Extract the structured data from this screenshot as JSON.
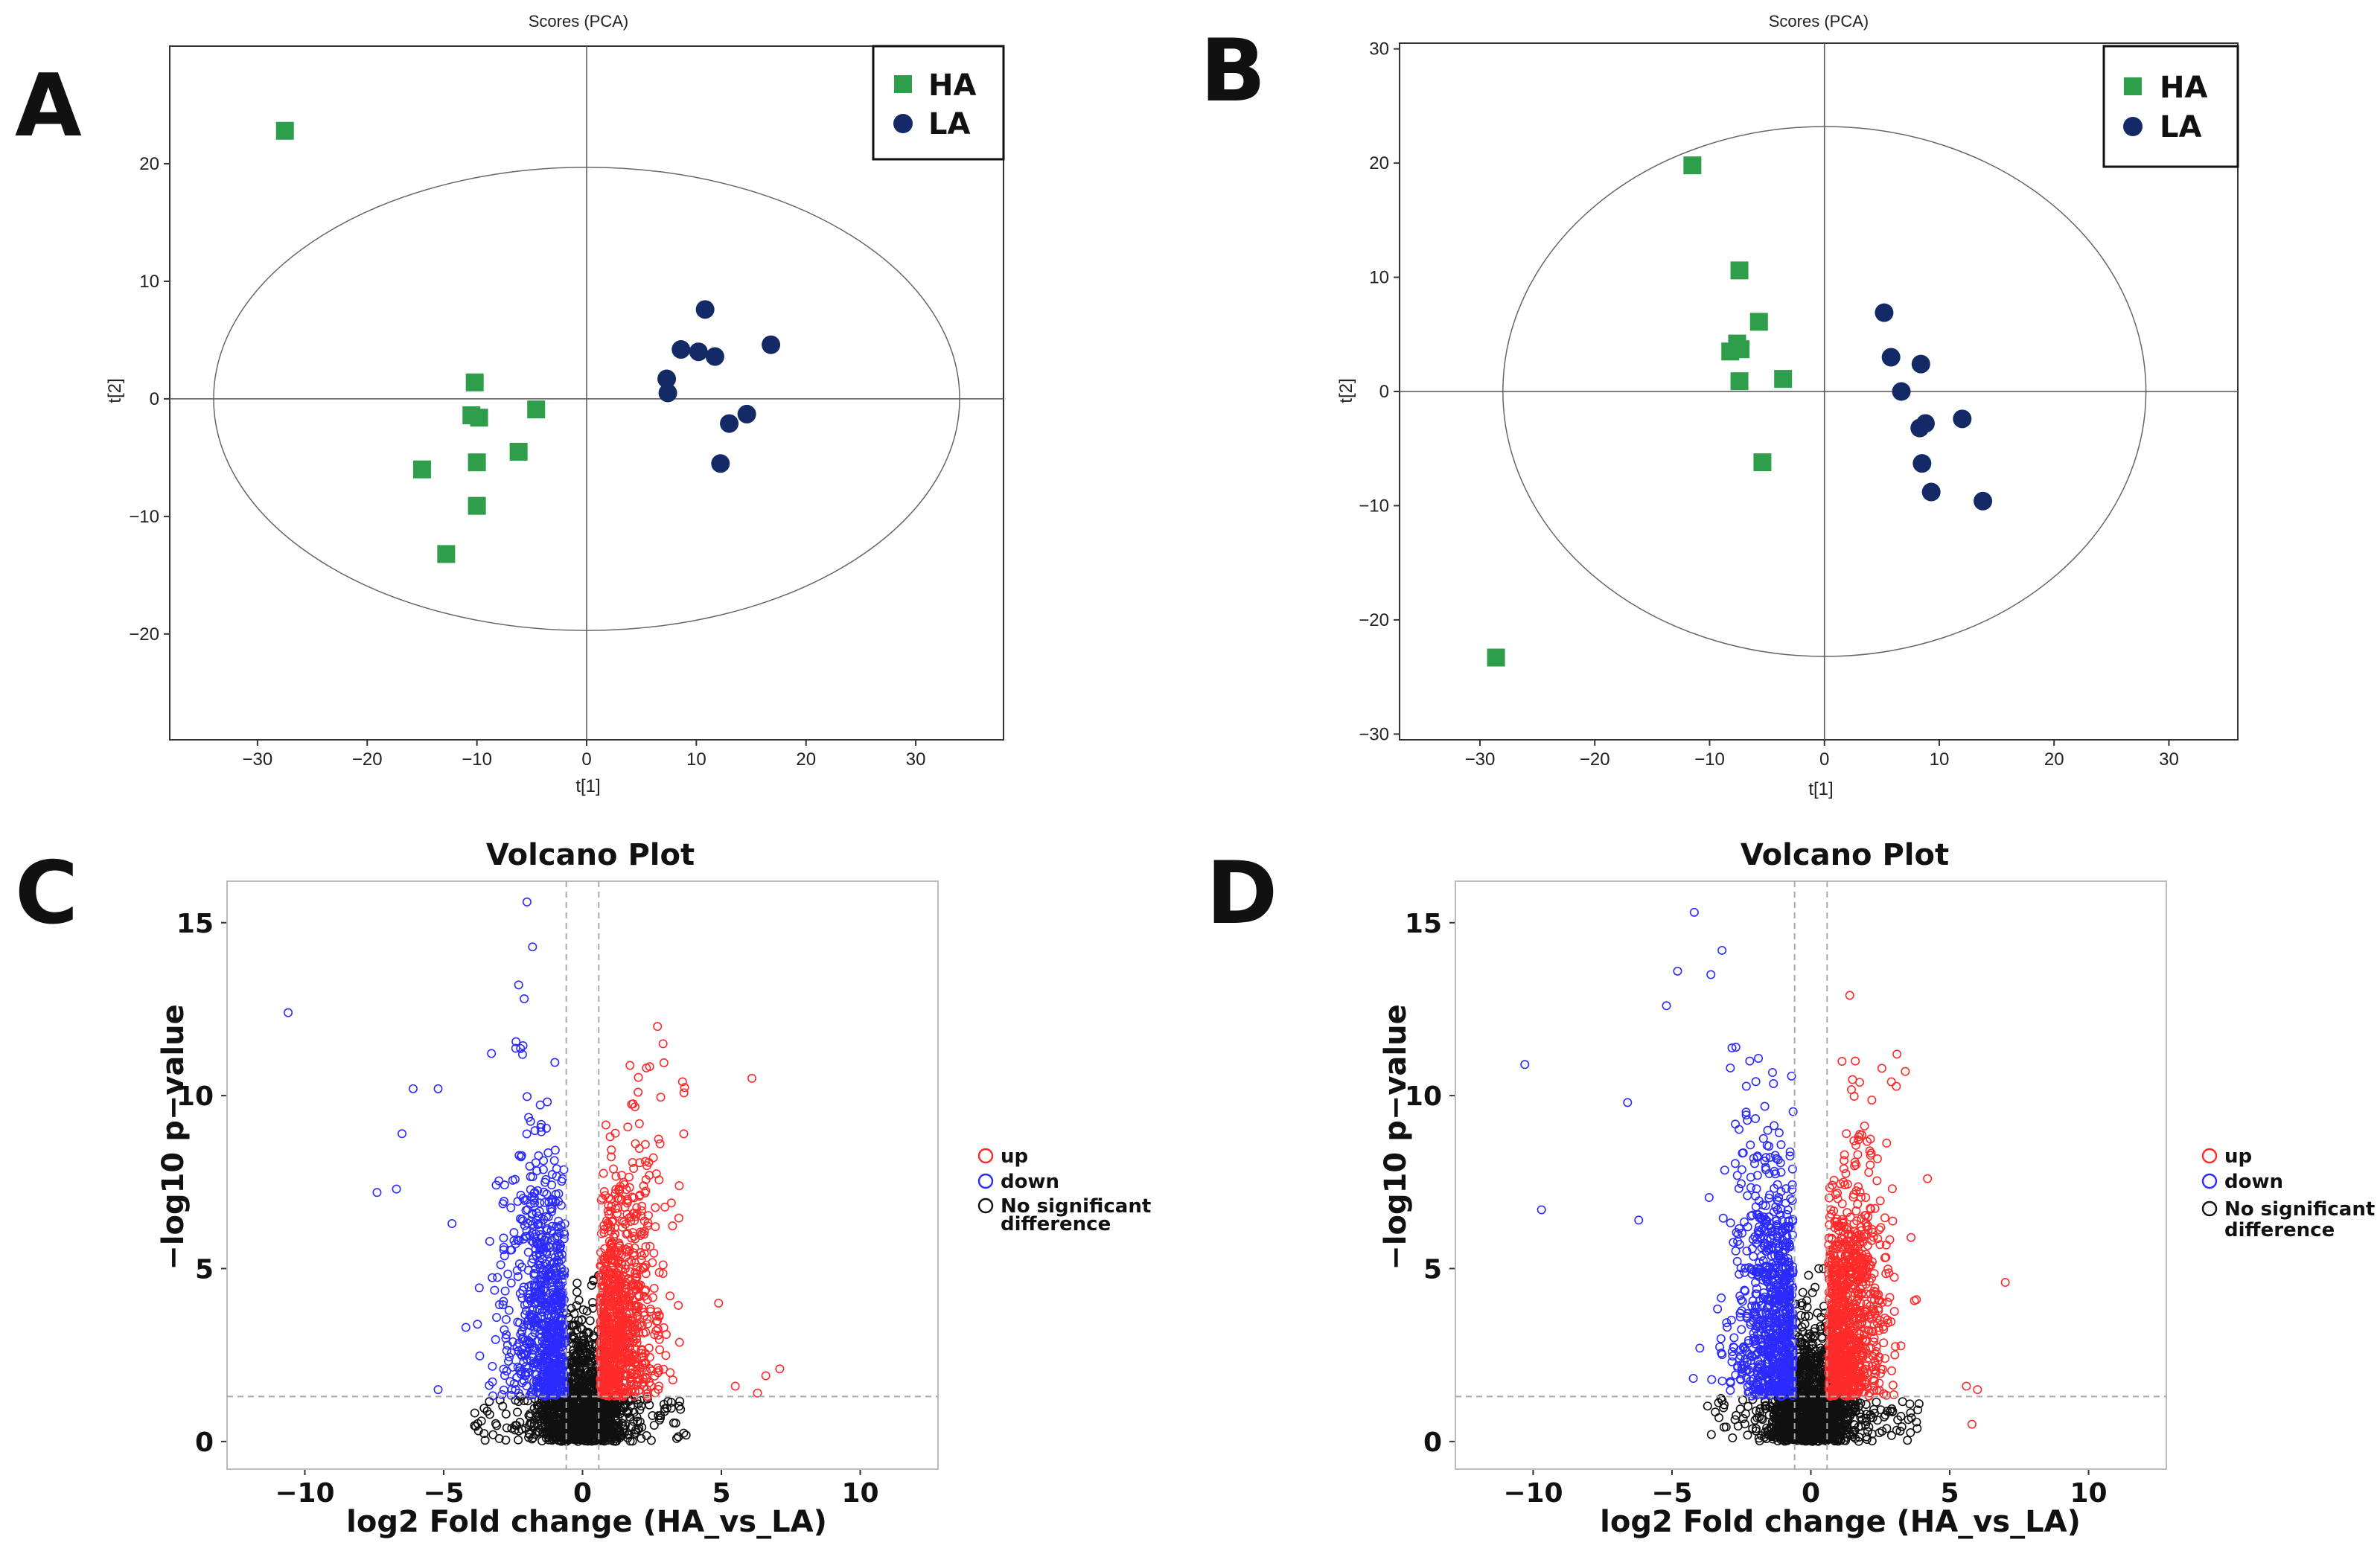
{
  "colors": {
    "ha": "#2e9e4a",
    "la": "#142a66",
    "up": "#ff2a2a",
    "down": "#2b2bff",
    "nsd": "#111111",
    "axis": "#333333",
    "guide": "#aaaaaa"
  },
  "chart_data": [
    {
      "panel": "A",
      "type": "scatter",
      "title": "Scores (PCA)",
      "xlabel": "t[1]",
      "ylabel": "t[2]",
      "xlim": [
        -38,
        38
      ],
      "ylim": [
        -29,
        30
      ],
      "xticks": [
        -30,
        -20,
        -10,
        0,
        10,
        20,
        30
      ],
      "yticks": [
        -20,
        -10,
        0,
        10,
        20
      ],
      "ellipse": {
        "rx": 34,
        "ry": 19.7
      },
      "legend": {
        "position": "top-right",
        "entries": [
          "HA",
          "LA"
        ]
      },
      "series": [
        {
          "name": "HA",
          "marker": "square",
          "x": [
            -27.5,
            -10.2,
            -10.5,
            -9.8,
            -4.6,
            -15,
            -10,
            -6.2,
            -10,
            -12.8
          ],
          "y": [
            22.8,
            1.4,
            -1.4,
            -1.6,
            -0.9,
            -6,
            -5.4,
            -4.5,
            -9.1,
            -13.2
          ]
        },
        {
          "name": "LA",
          "marker": "circle",
          "x": [
            10.8,
            8.6,
            10.2,
            11.7,
            16.8,
            7.3,
            7.4,
            13,
            14.6,
            12.2
          ],
          "y": [
            7.6,
            4.2,
            4.0,
            3.6,
            4.6,
            1.7,
            0.5,
            -2.1,
            -1.3,
            -5.5
          ]
        }
      ]
    },
    {
      "panel": "B",
      "type": "scatter",
      "title": "Scores (PCA)",
      "xlabel": "t[1]",
      "ylabel": "t[2]",
      "xlim": [
        -37,
        36
      ],
      "ylim": [
        -30.5,
        30.5
      ],
      "xticks": [
        -30,
        -20,
        -10,
        0,
        10,
        20,
        30
      ],
      "yticks": [
        -30,
        -20,
        -10,
        0,
        10,
        20,
        30
      ],
      "ellipse": {
        "rx": 28,
        "ry": 23.2
      },
      "legend": {
        "position": "top-right",
        "entries": [
          "HA",
          "LA"
        ]
      },
      "series": [
        {
          "name": "HA",
          "marker": "square",
          "x": [
            -11.5,
            -7.4,
            -7.6,
            -8.2,
            -7.3,
            -5.7,
            -7.4,
            -3.6,
            -5.4,
            -28.6
          ],
          "y": [
            19.8,
            10.6,
            4.2,
            3.5,
            3.7,
            6.1,
            0.9,
            1.1,
            -6.2,
            -23.3
          ]
        },
        {
          "name": "LA",
          "marker": "circle",
          "x": [
            5.2,
            5.8,
            8.4,
            6.7,
            8.8,
            8.3,
            12,
            8.5,
            9.3,
            13.8
          ],
          "y": [
            6.9,
            3.0,
            2.4,
            0.0,
            -2.8,
            -3.2,
            -2.4,
            -6.3,
            -8.8,
            -9.6
          ]
        }
      ]
    },
    {
      "panel": "C",
      "type": "scatter",
      "title": "Volcano Plot",
      "xlabel": "log2 Fold change (HA_vs_LA)",
      "ylabel": "−log10 p−value",
      "xlim": [
        -12.8,
        12.8
      ],
      "ylim": [
        -0.8,
        16.2
      ],
      "xticks": [
        -10,
        -5,
        0,
        5,
        10
      ],
      "yticks": [
        0,
        5,
        10,
        15
      ],
      "guides": {
        "fc": [
          -0.585,
          0.585
        ],
        "p": 1.3
      },
      "legend": {
        "position": "right",
        "entries": [
          "up",
          "down",
          "No significant",
          "difference"
        ]
      },
      "series": [
        {
          "name": "up",
          "marker": "open-circle",
          "approx_count": 900
        },
        {
          "name": "down",
          "marker": "open-circle",
          "approx_count": 750
        },
        {
          "name": "No significant difference",
          "marker": "open-circle",
          "approx_count": 1200
        }
      ],
      "highlights": {
        "up": {
          "x": [
            6.1,
            2.7,
            2.9,
            2.3,
            3.6,
            2.0,
            4.9,
            6.6,
            7.1,
            6.3,
            5.5
          ],
          "y": [
            10.5,
            12.0,
            11.5,
            10.8,
            10.4,
            10.1,
            4.0,
            1.9,
            2.1,
            1.4,
            1.6
          ]
        },
        "down": {
          "x": [
            -10.6,
            -6.1,
            -5.2,
            -6.5,
            -7.4,
            -6.7,
            -4.7,
            -4.2,
            -5.2,
            -2.0,
            -1.8,
            -2.3,
            -2.1
          ],
          "y": [
            12.4,
            10.2,
            10.2,
            8.9,
            7.2,
            7.3,
            6.3,
            3.3,
            1.5,
            15.6,
            14.3,
            13.2,
            12.8
          ]
        }
      }
    },
    {
      "panel": "D",
      "type": "scatter",
      "title": "Volcano Plot",
      "xlabel": "log2 Fold change (HA_vs_LA)",
      "ylabel": "−log10 p−value",
      "xlim": [
        -12.8,
        12.8
      ],
      "ylim": [
        -0.8,
        16.2
      ],
      "xticks": [
        -10,
        -5,
        0,
        5,
        10
      ],
      "yticks": [
        0,
        5,
        10,
        15
      ],
      "guides": {
        "fc": [
          -0.585,
          0.585
        ],
        "p": 1.3
      },
      "legend": {
        "position": "right",
        "entries": [
          "up",
          "down",
          "No significant",
          "difference"
        ]
      },
      "series": [
        {
          "name": "up",
          "marker": "open-circle",
          "approx_count": 1000
        },
        {
          "name": "down",
          "marker": "open-circle",
          "approx_count": 850
        },
        {
          "name": "No significant difference",
          "marker": "open-circle",
          "approx_count": 1200
        }
      ],
      "highlights": {
        "up": {
          "x": [
            1.4,
            1.6,
            3.1,
            3.4,
            2.9,
            4.2,
            7.0,
            5.6,
            6.0,
            5.8,
            3.8
          ],
          "y": [
            12.9,
            11.0,
            11.2,
            10.7,
            10.4,
            7.6,
            4.6,
            1.6,
            1.5,
            0.5,
            4.1
          ]
        },
        "down": {
          "x": [
            -10.3,
            -9.7,
            -6.6,
            -6.2,
            -5.2,
            -4.8,
            -4.2,
            -3.2,
            -3.6,
            -2.7,
            -2.2,
            -2.9,
            -4.0
          ],
          "y": [
            10.9,
            6.7,
            9.8,
            6.4,
            12.6,
            13.6,
            15.3,
            14.2,
            13.5,
            11.4,
            11.0,
            10.8,
            2.7
          ]
        }
      }
    }
  ]
}
